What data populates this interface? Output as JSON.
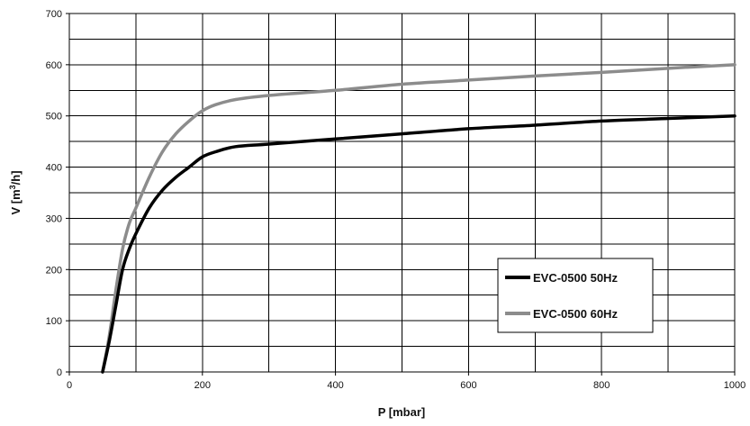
{
  "chart_data": {
    "type": "line",
    "title": "",
    "xlabel": "P [mbar]",
    "ylabel_main": "V [m",
    "ylabel_sup": "3",
    "ylabel_tail": "/h]",
    "xlim": [
      0,
      1000
    ],
    "ylim": [
      0,
      700
    ],
    "xticks": [
      0,
      200,
      400,
      600,
      800,
      1000
    ],
    "yticks": [
      0,
      100,
      200,
      300,
      400,
      500,
      600,
      700
    ],
    "x_gridlines": [
      0,
      100,
      200,
      300,
      400,
      500,
      600,
      700,
      800,
      900,
      1000
    ],
    "y_gridlines": [
      0,
      50,
      100,
      150,
      200,
      250,
      300,
      350,
      400,
      450,
      500,
      550,
      600,
      650,
      700
    ],
    "grid": true,
    "legend_position": "lower-right",
    "series": [
      {
        "name": "EVC-0500 50Hz",
        "color": "#000000",
        "x": [
          50,
          60,
          70,
          80,
          90,
          100,
          120,
          140,
          160,
          180,
          200,
          220,
          250,
          300,
          400,
          500,
          600,
          700,
          800,
          900,
          1000
        ],
        "y": [
          0,
          60,
          130,
          200,
          240,
          270,
          320,
          355,
          380,
          400,
          420,
          430,
          440,
          445,
          455,
          465,
          475,
          482,
          490,
          495,
          500
        ]
      },
      {
        "name": "EVC-0500 60Hz",
        "color": "#8c8c8c",
        "x": [
          50,
          60,
          70,
          80,
          90,
          100,
          120,
          140,
          160,
          180,
          200,
          220,
          250,
          300,
          400,
          500,
          600,
          700,
          800,
          900,
          1000
        ],
        "y": [
          0,
          70,
          160,
          240,
          290,
          320,
          380,
          430,
          465,
          490,
          510,
          522,
          532,
          540,
          550,
          562,
          570,
          578,
          585,
          593,
          600
        ]
      }
    ]
  }
}
